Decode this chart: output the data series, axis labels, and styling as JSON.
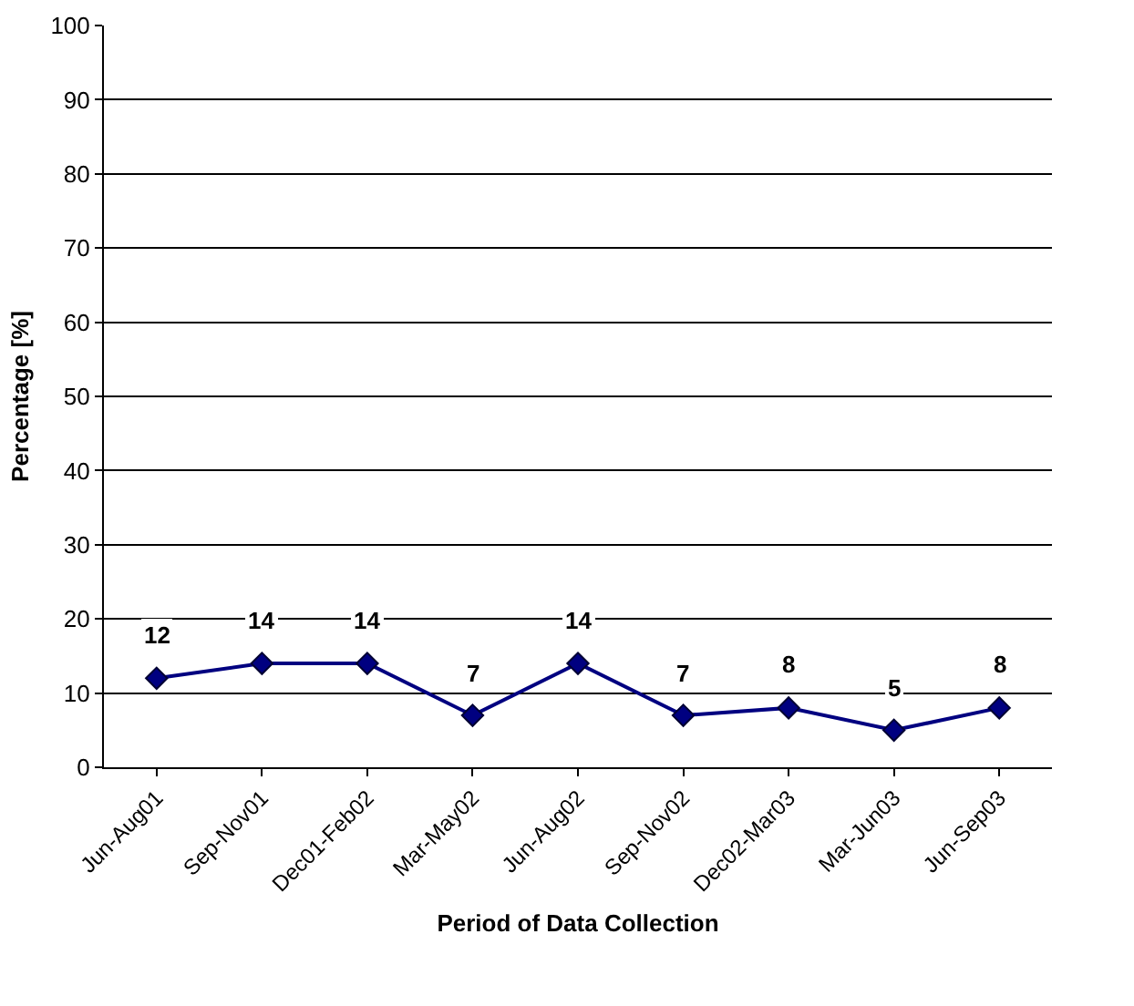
{
  "chart_data": {
    "type": "line",
    "xlabel": "Period of Data Collection",
    "ylabel": "Percentage [%]",
    "categories": [
      "Jun-Aug01",
      "Sep-Nov01",
      "Dec01-Feb02",
      "Mar-May02",
      "Jun-Aug02",
      "Sep-Nov02",
      "Dec02-Mar03",
      "Mar-Jun03",
      "Jun-Sep03"
    ],
    "series": [
      {
        "color": "#000080",
        "values": [
          12,
          14,
          14,
          7,
          14,
          7,
          8,
          5,
          8
        ]
      }
    ],
    "ylim": [
      0,
      100
    ],
    "yticks": [
      0,
      10,
      20,
      30,
      40,
      50,
      60,
      70,
      80,
      90,
      100
    ],
    "grid": "y",
    "marker": "diamond",
    "line_style": "solid",
    "data_labels": true
  }
}
